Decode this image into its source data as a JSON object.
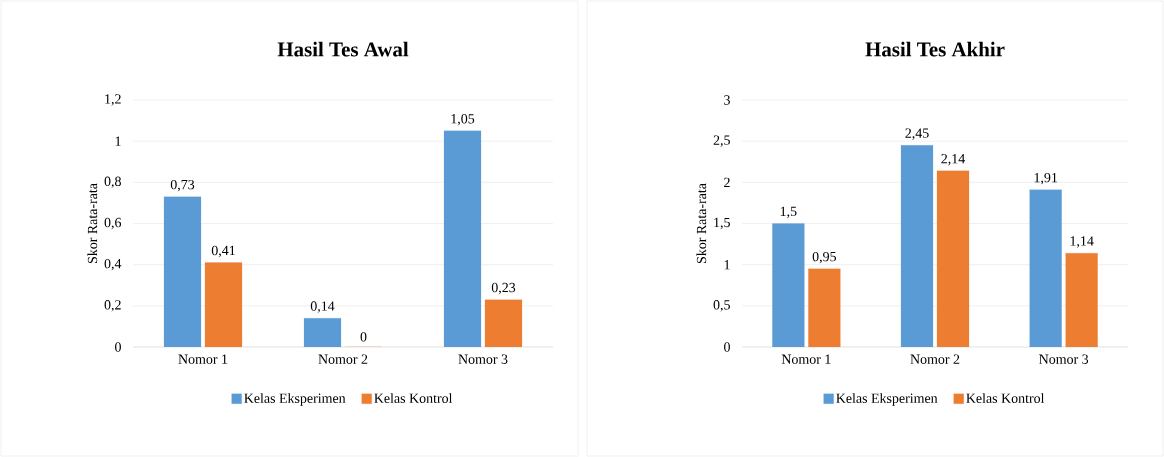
{
  "chart_data": [
    {
      "type": "bar",
      "title": "Hasil Tes Awal",
      "ylabel": "Skor Rata-rata",
      "categories": [
        "Nomor 1",
        "Nomor 2",
        "Nomor 3"
      ],
      "series": [
        {
          "name": "Kelas Eksperimen",
          "color": "#5b9bd5",
          "values": [
            0.73,
            0.14,
            1.05
          ],
          "value_labels": [
            "0,73",
            "0,14",
            "1,05"
          ]
        },
        {
          "name": "Kelas Kontrol",
          "color": "#ed7d31",
          "values": [
            0.41,
            0,
            0.23
          ],
          "value_labels": [
            "0,41",
            "0",
            "0,23"
          ]
        }
      ],
      "ylim": [
        0,
        1.2
      ],
      "yticks": [
        0,
        {
          "value": 0.2,
          "label": "0,2"
        },
        {
          "value": 0.4,
          "label": "0,4"
        },
        {
          "value": 0.6,
          "label": "0,6"
        },
        {
          "value": 0.8,
          "label": "0,8"
        },
        1,
        {
          "value": 1.2,
          "label": "1,2"
        }
      ],
      "grid": "y",
      "legend": "bottom"
    },
    {
      "type": "bar",
      "title": "Hasil Tes Akhir",
      "ylabel": "Skor Rata-rata",
      "categories": [
        "Nomor 1",
        "Nomor 2",
        "Nomor 3"
      ],
      "series": [
        {
          "name": "Kelas Eksperimen",
          "color": "#5b9bd5",
          "values": [
            1.5,
            2.45,
            1.91
          ],
          "value_labels": [
            "1,5",
            "2,45",
            "1,91"
          ]
        },
        {
          "name": "Kelas Kontrol",
          "color": "#ed7d31",
          "values": [
            0.95,
            2.14,
            1.14
          ],
          "value_labels": [
            "0,95",
            "2,14",
            "1,14"
          ]
        }
      ],
      "ylim": [
        0,
        3
      ],
      "yticks": [
        0,
        {
          "value": 0.5,
          "label": "0,5"
        },
        1,
        {
          "value": 1.5,
          "label": "1,5"
        },
        2,
        {
          "value": 2.5,
          "label": "2,5"
        },
        3
      ],
      "grid": "y",
      "legend": "bottom"
    }
  ]
}
